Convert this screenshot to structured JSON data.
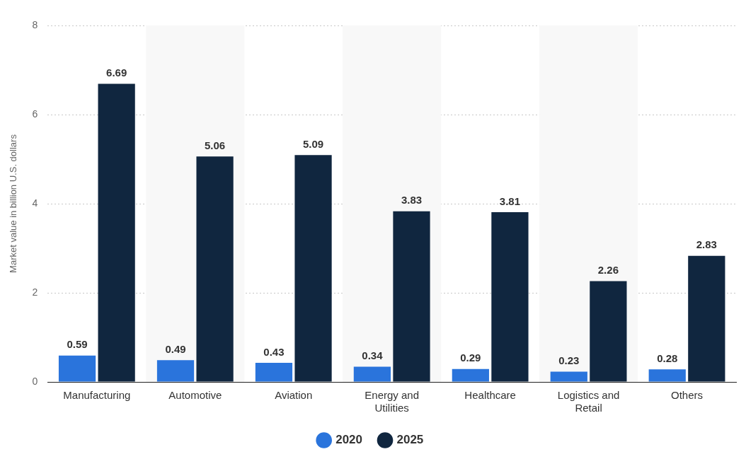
{
  "chart_data": {
    "type": "bar",
    "y_label": "Market value in billion U.S. dollars",
    "categories": [
      "Manufacturing",
      "Automotive",
      "Aviation",
      "Energy and Utilities",
      "Healthcare",
      "Logistics and Retail",
      "Others"
    ],
    "series": [
      {
        "name": "2020",
        "color": "#2a74dc",
        "values": [
          0.59,
          0.49,
          0.43,
          0.34,
          0.29,
          0.23,
          0.28
        ]
      },
      {
        "name": "2025",
        "color": "#10263f",
        "values": [
          6.69,
          5.06,
          5.09,
          3.83,
          3.81,
          2.26,
          2.83
        ]
      }
    ],
    "ylim": [
      0,
      8
    ],
    "yticks": [
      0,
      2,
      4,
      6,
      8
    ],
    "grid": true,
    "legend": "bottom",
    "data_labels": true
  }
}
